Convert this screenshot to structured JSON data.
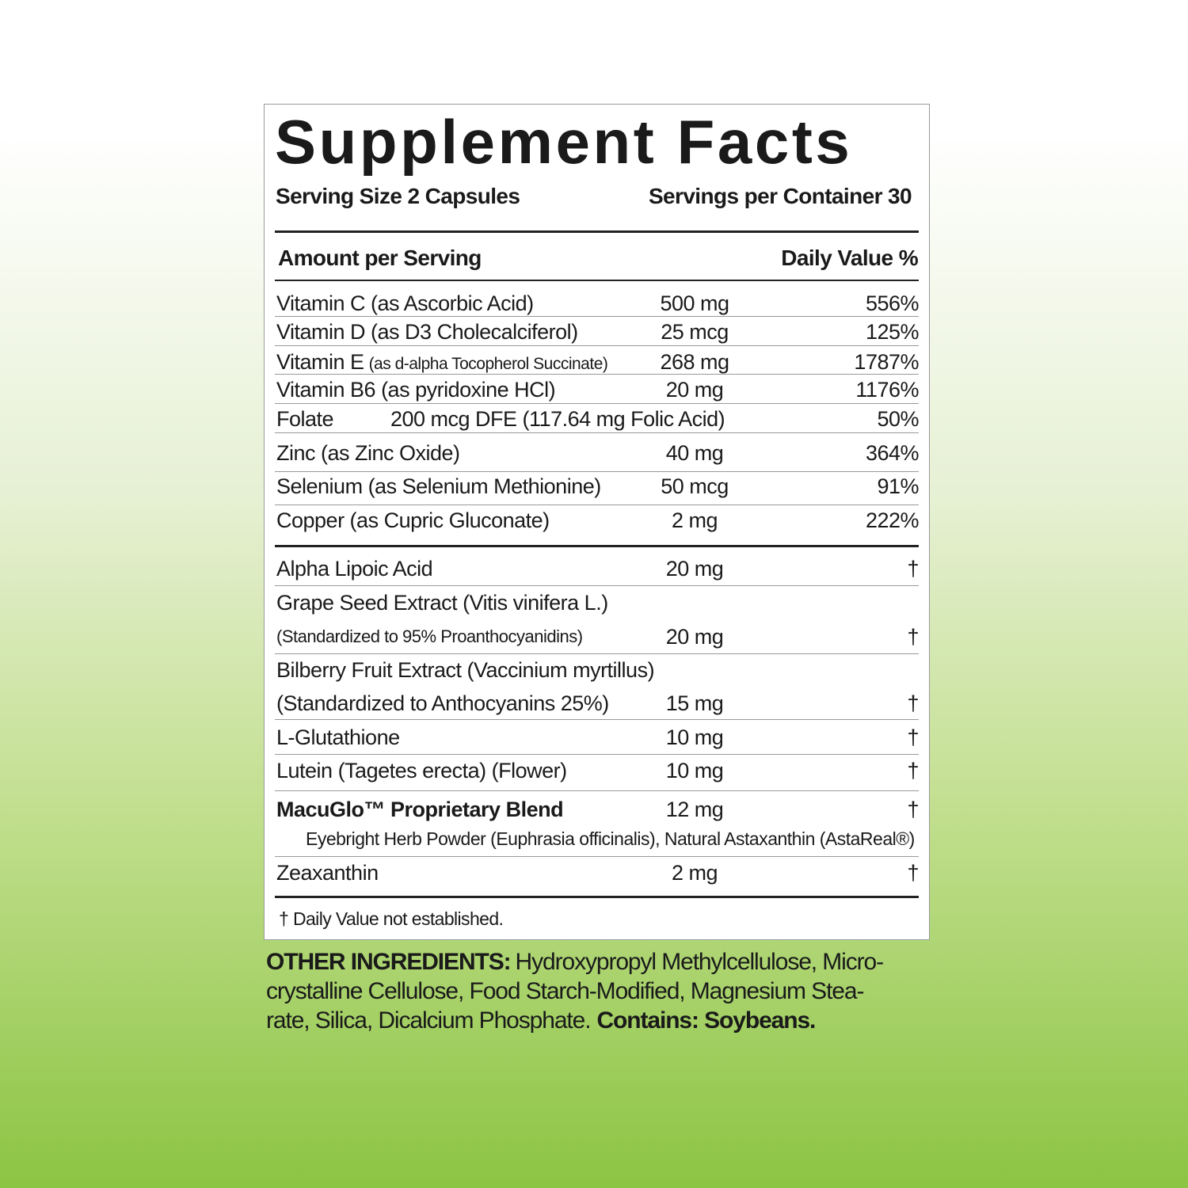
{
  "title": "Supplement Facts",
  "serving_size": "Serving Size 2 Capsules",
  "servings_per_container": "Servings per Container 30",
  "header": {
    "amount": "Amount per Serving",
    "daily_value": "Daily Value %"
  },
  "rows": [
    {
      "name": "Vitamin C (as Ascorbic Acid)",
      "amount": "500 mg",
      "dv": "556%"
    },
    {
      "name": "Vitamin D (as D3 Cholecalciferol)",
      "amount": "25 mcg",
      "dv": "125%"
    },
    {
      "name": "Vitamin E",
      "note": "(as d-alpha Tocopherol Succinate)",
      "amount": "268 mg",
      "dv": "1787%"
    },
    {
      "name": "Vitamin B6 (as pyridoxine HCl)",
      "amount": "20 mg",
      "dv": "1176%"
    },
    {
      "name": "Folate",
      "amount": "200 mcg DFE (117.64 mg Folic Acid)",
      "dv": "50%"
    },
    {
      "name": "Zinc (as Zinc Oxide)",
      "amount": "40 mg",
      "dv": "364%"
    },
    {
      "name": "Selenium (as Selenium Methionine)",
      "amount": "50 mcg",
      "dv": "91%"
    },
    {
      "name": "Copper (as Cupric Gluconate)",
      "amount": "2 mg",
      "dv": "222%"
    },
    {
      "name": "Alpha Lipoic Acid",
      "amount": "20 mg",
      "dv": "†"
    },
    {
      "name": "Grape Seed Extract (Vitis vinifera L.)",
      "note": "(Standardized to 95% Proanthocyanidins)",
      "amount": "20 mg",
      "dv": "†"
    },
    {
      "name": "Bilberry Fruit Extract (Vaccinium myrtillus)",
      "note": "(Standardized to Anthocyanins 25%)",
      "amount": "15 mg",
      "dv": "†"
    },
    {
      "name": "L-Glutathione",
      "amount": "10 mg",
      "dv": "†"
    },
    {
      "name": "Lutein (Tagetes erecta) (Flower)",
      "amount": "10 mg",
      "dv": "†"
    },
    {
      "name": "MacuGlo™ Proprietary Blend",
      "note": "Eyebright Herb Powder (Euphrasia officinalis), Natural Astaxanthin (AstaReal®)",
      "amount": "12 mg",
      "dv": "†"
    },
    {
      "name": "Zeaxanthin",
      "amount": "2 mg",
      "dv": "†"
    }
  ],
  "footnote": "† Daily Value not established.",
  "other_ingredients": {
    "label": "OTHER INGREDIENTS:",
    "lines": [
      "Hydroxypropyl Methylcellulose, Micro-",
      "crystalline Cellulose, Food Starch-Modified, Magnesium Stea-",
      "rate, Silica, Dicalcium Phosphate."
    ],
    "contains": "Contains: Soybeans."
  }
}
